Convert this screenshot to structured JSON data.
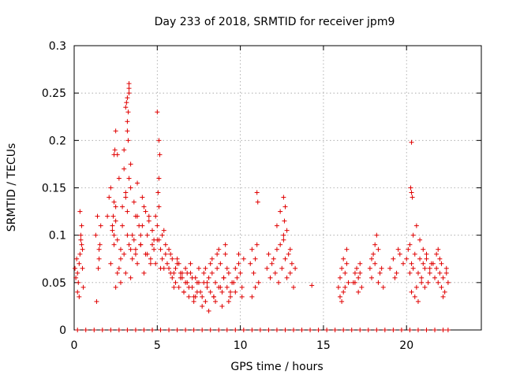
{
  "chart_data": {
    "type": "scatter",
    "title": "Day 233 of 2018, SRMTID for receiver jpm9",
    "xlabel": "GPS time / hours",
    "ylabel": "SRMTID / TECUs",
    "xlim": [
      0,
      24.5
    ],
    "ylim": [
      0,
      0.3
    ],
    "xticks": [
      0,
      5,
      10,
      15,
      20
    ],
    "xtick_labels": [
      "0",
      "5",
      "10",
      "15",
      "20"
    ],
    "yticks": [
      0,
      0.05,
      0.1,
      0.15,
      0.2,
      0.25,
      0.3
    ],
    "ytick_labels": [
      "0",
      "0.05",
      "0.1",
      "0.15",
      "0.2",
      "0.25",
      "0.3"
    ],
    "grid": true,
    "marker": "+",
    "series": [
      {
        "name": "SRMTID",
        "color": "#e00000",
        "x": [
          0.05,
          0.1,
          0.15,
          0.2,
          0.25,
          0.3,
          0.35,
          0.4,
          0.45,
          0.5,
          0.55,
          0.2,
          0.35,
          0.45,
          0.3,
          0.4,
          0.5,
          1.3,
          1.4,
          1.5,
          1.6,
          1.35,
          1.45,
          1.55,
          1.5,
          2.0,
          2.1,
          2.2,
          2.3,
          2.4,
          2.5,
          2.6,
          2.7,
          2.8,
          2.9,
          3.0,
          3.1,
          3.2,
          3.3,
          3.4,
          3.5,
          3.6,
          3.7,
          3.8,
          3.9,
          2.2,
          2.4,
          2.6,
          2.8,
          3.0,
          3.2,
          3.4,
          3.6,
          3.8,
          4.0,
          2.3,
          2.5,
          2.7,
          2.9,
          3.1,
          3.3,
          3.5,
          3.7,
          2.5,
          2.8,
          3.1,
          3.4,
          3.7,
          4.0,
          2.6,
          3.0,
          3.4,
          3.8,
          3.2,
          3.25,
          3.3,
          3.15,
          3.2,
          3.3,
          3.25,
          3.1,
          3.2,
          3.3,
          2.4,
          2.45,
          2.5,
          2.35,
          2.4,
          4.0,
          4.1,
          4.2,
          4.3,
          4.4,
          4.5,
          4.6,
          4.7,
          4.8,
          4.9,
          5.0,
          5.1,
          5.2,
          5.3,
          5.4,
          5.5,
          4.1,
          4.3,
          4.5,
          4.7,
          4.9,
          5.1,
          5.3,
          5.5,
          4.2,
          4.4,
          4.6,
          4.8,
          5.0,
          5.2,
          5.4,
          5.0,
          5.1,
          5.05,
          5.15,
          5.1,
          5.6,
          5.7,
          5.8,
          5.9,
          6.0,
          6.1,
          6.2,
          6.3,
          6.4,
          6.5,
          6.6,
          6.7,
          6.8,
          6.9,
          7.0,
          7.1,
          7.2,
          7.3,
          7.4,
          7.5,
          5.7,
          5.9,
          6.1,
          6.3,
          6.5,
          6.7,
          6.9,
          7.1,
          7.3,
          7.5,
          5.8,
          6.0,
          6.2,
          6.4,
          6.6,
          6.8,
          7.0,
          7.2,
          7.4,
          7.6,
          7.7,
          7.8,
          7.9,
          8.0,
          8.1,
          8.2,
          8.3,
          8.4,
          8.5,
          8.6,
          8.7,
          8.8,
          8.9,
          9.0,
          9.1,
          9.2,
          9.3,
          9.4,
          9.5,
          7.7,
          7.9,
          8.1,
          8.3,
          8.5,
          8.7,
          8.9,
          9.1,
          9.3,
          7.8,
          8.0,
          8.2,
          8.4,
          8.6,
          8.8,
          9.0,
          9.2,
          9.4,
          9.6,
          9.7,
          9.8,
          9.9,
          10.0,
          10.1,
          10.2,
          9.7,
          9.9,
          10.1,
          10.6,
          10.7,
          10.8,
          10.9,
          11.0,
          11.1,
          10.7,
          10.9,
          11.0,
          11.05,
          11.6,
          11.7,
          11.8,
          11.9,
          12.0,
          12.1,
          12.2,
          12.3,
          12.4,
          12.5,
          12.6,
          12.7,
          12.8,
          12.9,
          13.0,
          13.1,
          13.2,
          13.3,
          12.2,
          12.4,
          12.6,
          12.8,
          13.0,
          12.6,
          12.7,
          12.65,
          14.3,
          15.9,
          16.0,
          16.1,
          16.2,
          16.3,
          16.4,
          16.5,
          16.0,
          16.2,
          16.4,
          16.1,
          16.3,
          16.8,
          16.9,
          17.0,
          17.1,
          17.2,
          17.3,
          16.9,
          17.1,
          17.2,
          17.8,
          17.9,
          18.0,
          18.1,
          18.2,
          18.3,
          18.4,
          17.9,
          18.1,
          18.3,
          18.5,
          18.6,
          19.0,
          19.2,
          19.4,
          19.6,
          19.8,
          19.3,
          19.5,
          20.0,
          20.1,
          20.2,
          20.3,
          20.4,
          20.5,
          20.6,
          20.7,
          20.8,
          20.9,
          21.0,
          21.1,
          21.2,
          21.3,
          21.4,
          21.5,
          20.2,
          20.4,
          20.6,
          20.8,
          21.0,
          21.2,
          21.4,
          20.3,
          20.5,
          20.7,
          20.9,
          21.1,
          20.3,
          20.3,
          20.25,
          20.35,
          21.6,
          21.7,
          21.8,
          21.9,
          22.0,
          22.1,
          22.2,
          22.3,
          22.4,
          22.5,
          21.8,
          22.0,
          22.2,
          22.4,
          21.9,
          22.1,
          0.2,
          0.7,
          1.2,
          1.7,
          2.2,
          2.7,
          3.2,
          3.7,
          4.2,
          4.7,
          5.2,
          5.7,
          6.2,
          6.7,
          7.2,
          7.7,
          8.2,
          8.7,
          9.2,
          9.7,
          10.2,
          10.7,
          11.2,
          11.7,
          12.2,
          12.7,
          13.2,
          13.7,
          14.2,
          14.7,
          15.2,
          15.7,
          16.2,
          16.7,
          17.2,
          17.7,
          18.2,
          18.7,
          19.2,
          19.7,
          20.2,
          20.7,
          21.2,
          21.7,
          22.2,
          22.5
        ],
        "y": [
          0.065,
          0.055,
          0.075,
          0.06,
          0.05,
          0.07,
          0.08,
          0.1,
          0.09,
          0.065,
          0.045,
          0.04,
          0.125,
          0.11,
          0.035,
          0.095,
          0.085,
          0.1,
          0.12,
          0.085,
          0.11,
          0.03,
          0.065,
          0.09,
          0.075,
          0.12,
          0.14,
          0.15,
          0.11,
          0.1,
          0.13,
          0.095,
          0.16,
          0.085,
          0.11,
          0.17,
          0.14,
          0.125,
          0.09,
          0.15,
          0.1,
          0.135,
          0.08,
          0.12,
          0.11,
          0.07,
          0.09,
          0.06,
          0.075,
          0.08,
          0.1,
          0.085,
          0.095,
          0.07,
          0.09,
          0.105,
          0.115,
          0.065,
          0.13,
          0.145,
          0.16,
          0.075,
          0.12,
          0.045,
          0.05,
          0.06,
          0.055,
          0.085,
          0.1,
          0.185,
          0.19,
          0.175,
          0.155,
          0.21,
          0.23,
          0.25,
          0.24,
          0.22,
          0.26,
          0.2,
          0.235,
          0.245,
          0.255,
          0.185,
          0.19,
          0.21,
          0.12,
          0.135,
          0.09,
          0.11,
          0.13,
          0.08,
          0.1,
          0.12,
          0.075,
          0.09,
          0.095,
          0.07,
          0.11,
          0.13,
          0.085,
          0.1,
          0.065,
          0.08,
          0.14,
          0.125,
          0.115,
          0.105,
          0.12,
          0.095,
          0.075,
          0.09,
          0.06,
          0.08,
          0.07,
          0.085,
          0.095,
          0.065,
          0.105,
          0.23,
          0.2,
          0.145,
          0.185,
          0.16,
          0.07,
          0.065,
          0.08,
          0.055,
          0.06,
          0.05,
          0.07,
          0.045,
          0.06,
          0.055,
          0.04,
          0.065,
          0.05,
          0.035,
          0.06,
          0.045,
          0.03,
          0.055,
          0.04,
          0.05,
          0.085,
          0.075,
          0.065,
          0.07,
          0.06,
          0.05,
          0.045,
          0.055,
          0.035,
          0.065,
          0.06,
          0.045,
          0.075,
          0.055,
          0.04,
          0.06,
          0.07,
          0.035,
          0.05,
          0.04,
          0.035,
          0.05,
          0.03,
          0.045,
          0.055,
          0.04,
          0.06,
          0.035,
          0.05,
          0.065,
          0.045,
          0.07,
          0.04,
          0.055,
          0.08,
          0.045,
          0.06,
          0.035,
          0.05,
          0.025,
          0.065,
          0.02,
          0.075,
          0.03,
          0.085,
          0.025,
          0.09,
          0.03,
          0.06,
          0.05,
          0.07,
          0.035,
          0.08,
          0.045,
          0.055,
          0.065,
          0.04,
          0.05,
          0.065,
          0.055,
          0.07,
          0.06,
          0.045,
          0.075,
          0.04,
          0.08,
          0.035,
          0.07,
          0.085,
          0.06,
          0.075,
          0.09,
          0.05,
          0.035,
          0.045,
          0.145,
          0.135,
          0.065,
          0.08,
          0.055,
          0.07,
          0.075,
          0.06,
          0.085,
          0.05,
          0.09,
          0.065,
          0.1,
          0.075,
          0.055,
          0.08,
          0.06,
          0.07,
          0.045,
          0.065,
          0.11,
          0.125,
          0.095,
          0.105,
          0.085,
          0.14,
          0.13,
          0.115,
          0.047,
          0.045,
          0.055,
          0.065,
          0.04,
          0.06,
          0.07,
          0.05,
          0.035,
          0.075,
          0.085,
          0.03,
          0.045,
          0.05,
          0.06,
          0.065,
          0.055,
          0.07,
          0.045,
          0.05,
          0.04,
          0.06,
          0.065,
          0.075,
          0.08,
          0.07,
          0.1,
          0.085,
          0.06,
          0.055,
          0.09,
          0.05,
          0.065,
          0.045,
          0.065,
          0.075,
          0.06,
          0.08,
          0.07,
          0.055,
          0.085,
          0.075,
          0.085,
          0.06,
          0.07,
          0.065,
          0.08,
          0.045,
          0.06,
          0.075,
          0.055,
          0.07,
          0.065,
          0.08,
          0.05,
          0.06,
          0.07,
          0.09,
          0.1,
          0.11,
          0.095,
          0.085,
          0.075,
          0.065,
          0.04,
          0.035,
          0.03,
          0.05,
          0.045,
          0.145,
          0.198,
          0.15,
          0.14,
          0.07,
          0.055,
          0.065,
          0.05,
          0.06,
          0.045,
          0.055,
          0.04,
          0.065,
          0.05,
          0.08,
          0.075,
          0.035,
          0.06,
          0.085,
          0.07,
          0,
          0,
          0,
          0,
          0,
          0,
          0,
          0,
          0,
          0,
          0,
          0,
          0,
          0,
          0,
          0,
          0,
          0,
          0,
          0,
          0,
          0,
          0,
          0,
          0,
          0,
          0,
          0,
          0,
          0,
          0,
          0,
          0,
          0,
          0,
          0,
          0,
          0,
          0,
          0,
          0,
          0,
          0,
          0,
          0,
          0
        ]
      }
    ]
  }
}
